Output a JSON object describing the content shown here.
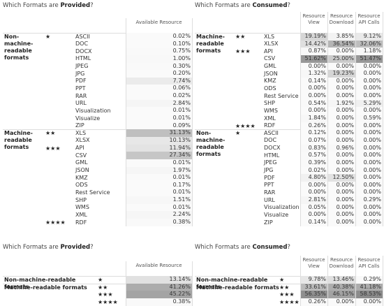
{
  "top_provided": {
    "title": {
      "prefix": "Which Formats are ",
      "emphasis": "Provided",
      "suffix": "?"
    },
    "headers": [
      "Available Resource"
    ],
    "groups": [
      {
        "label": "Non-machine-readable formats",
        "tiers": [
          {
            "stars": "★",
            "rows": [
              {
                "format": "ASCII",
                "values": [
                  "0.02%"
                ]
              },
              {
                "format": "DOC",
                "values": [
                  "0.10%"
                ]
              },
              {
                "format": "DOCX",
                "values": [
                  "0.75%"
                ]
              },
              {
                "format": "HTML",
                "values": [
                  "1.00%"
                ]
              },
              {
                "format": "JPEG",
                "values": [
                  "0.30%"
                ]
              },
              {
                "format": "JPG",
                "values": [
                  "0.20%"
                ]
              },
              {
                "format": "PDF",
                "values": [
                  "7.74%"
                ]
              },
              {
                "format": "PPT",
                "values": [
                  "0.06%"
                ]
              },
              {
                "format": "RAR",
                "values": [
                  "0.02%"
                ]
              },
              {
                "format": "URL",
                "values": [
                  "2.84%"
                ]
              },
              {
                "format": "Visualization",
                "values": [
                  "0.01%"
                ]
              },
              {
                "format": "Visualize",
                "values": [
                  "0.01%"
                ]
              },
              {
                "format": "ZIP",
                "values": [
                  "0.09%"
                ]
              }
            ]
          }
        ]
      },
      {
        "label": "Machine-readable formats",
        "tiers": [
          {
            "stars": "★★",
            "rows": [
              {
                "format": "XLS",
                "values": [
                  "31.13%"
                ]
              },
              {
                "format": "XLSX",
                "values": [
                  "10.13%"
                ]
              }
            ]
          },
          {
            "stars": "★★★",
            "rows": [
              {
                "format": "API",
                "values": [
                  "11.94%"
                ]
              },
              {
                "format": "CSV",
                "values": [
                  "27.34%"
                ]
              },
              {
                "format": "GML",
                "values": [
                  "0.01%"
                ]
              },
              {
                "format": "JSON",
                "values": [
                  "1.97%"
                ]
              },
              {
                "format": "KMZ",
                "values": [
                  "0.01%"
                ]
              },
              {
                "format": "ODS",
                "values": [
                  "0.17%"
                ]
              },
              {
                "format": "Rest Service",
                "values": [
                  "0.01%"
                ]
              },
              {
                "format": "SHP",
                "values": [
                  "1.51%"
                ]
              },
              {
                "format": "WMS",
                "values": [
                  "0.01%"
                ]
              },
              {
                "format": "XML",
                "values": [
                  "2.24%"
                ]
              }
            ]
          },
          {
            "stars": "★★★★",
            "rows": [
              {
                "format": "RDF",
                "values": [
                  "0.38%"
                ]
              }
            ]
          }
        ]
      }
    ]
  },
  "top_consumed": {
    "title": {
      "prefix": "Which Formats are ",
      "emphasis": "Consumed",
      "suffix": "?"
    },
    "headers": [
      "Resource View",
      "Resource Download",
      "Resource API Calls"
    ],
    "groups": [
      {
        "label": "Machine-readable formats",
        "tiers": [
          {
            "stars": "★★",
            "rows": [
              {
                "format": "XLS",
                "values": [
                  "19.19%",
                  "3.85%",
                  "9.12%"
                ]
              },
              {
                "format": "XLSX",
                "values": [
                  "14.42%",
                  "36.54%",
                  "32.06%"
                ]
              }
            ]
          },
          {
            "stars": "★★★",
            "rows": [
              {
                "format": "API",
                "values": [
                  "0.87%",
                  "0.00%",
                  "1.18%"
                ]
              },
              {
                "format": "CSV",
                "values": [
                  "51.62%",
                  "25.00%",
                  "51.47%"
                ]
              },
              {
                "format": "GML",
                "values": [
                  "0.00%",
                  "0.00%",
                  "0.00%"
                ]
              },
              {
                "format": "JSON",
                "values": [
                  "1.32%",
                  "19.23%",
                  "0.00%"
                ]
              },
              {
                "format": "KMZ",
                "values": [
                  "0.14%",
                  "0.00%",
                  "0.00%"
                ]
              },
              {
                "format": "ODS",
                "values": [
                  "0.00%",
                  "0.00%",
                  "0.00%"
                ]
              },
              {
                "format": "Rest Service",
                "values": [
                  "0.00%",
                  "0.00%",
                  "0.00%"
                ]
              },
              {
                "format": "SHP",
                "values": [
                  "0.54%",
                  "1.92%",
                  "5.29%"
                ]
              },
              {
                "format": "WMS",
                "values": [
                  "0.00%",
                  "0.00%",
                  "0.00%"
                ]
              },
              {
                "format": "XML",
                "values": [
                  "1.84%",
                  "0.00%",
                  "0.59%"
                ]
              }
            ]
          },
          {
            "stars": "★★★★",
            "rows": [
              {
                "format": "RDF",
                "values": [
                  "0.26%",
                  "0.00%",
                  "0.00%"
                ]
              }
            ]
          }
        ]
      },
      {
        "label": "Non-machine-readable formats",
        "tiers": [
          {
            "stars": "★",
            "rows": [
              {
                "format": "ASCII",
                "values": [
                  "0.12%",
                  "0.00%",
                  "0.00%"
                ]
              },
              {
                "format": "DOC",
                "values": [
                  "0.07%",
                  "0.00%",
                  "0.00%"
                ]
              },
              {
                "format": "DOCX",
                "values": [
                  "0.83%",
                  "0.96%",
                  "0.00%"
                ]
              },
              {
                "format": "HTML",
                "values": [
                  "0.57%",
                  "0.00%",
                  "0.00%"
                ]
              },
              {
                "format": "JPEG",
                "values": [
                  "0.39%",
                  "0.00%",
                  "0.00%"
                ]
              },
              {
                "format": "JPG",
                "values": [
                  "0.02%",
                  "0.00%",
                  "0.00%"
                ]
              },
              {
                "format": "PDF",
                "values": [
                  "4.80%",
                  "12.50%",
                  "0.00%"
                ]
              },
              {
                "format": "PPT",
                "values": [
                  "0.00%",
                  "0.00%",
                  "0.00%"
                ]
              },
              {
                "format": "RAR",
                "values": [
                  "0.00%",
                  "0.00%",
                  "0.00%"
                ]
              },
              {
                "format": "URL",
                "values": [
                  "2.81%",
                  "0.00%",
                  "0.29%"
                ]
              },
              {
                "format": "Visualization",
                "values": [
                  "0.05%",
                  "0.00%",
                  "0.00%"
                ]
              },
              {
                "format": "Visualize",
                "values": [
                  "0.00%",
                  "0.00%",
                  "0.00%"
                ]
              },
              {
                "format": "ZIP",
                "values": [
                  "0.14%",
                  "0.00%",
                  "0.00%"
                ]
              }
            ]
          }
        ]
      }
    ]
  },
  "bottom_provided": {
    "title": {
      "prefix": "Which Formats are ",
      "emphasis": "Provided",
      "suffix": "?"
    },
    "headers": [
      "Available Resource"
    ],
    "groups": [
      {
        "label": "Non-machine-readable formats",
        "tiers": [
          {
            "stars": "★",
            "values": [
              "13.14%"
            ]
          }
        ]
      },
      {
        "label": "Machine-readable formats",
        "tiers": [
          {
            "stars": "★★",
            "values": [
              "41.26%"
            ]
          },
          {
            "stars": "★★★",
            "values": [
              "45.22%"
            ]
          },
          {
            "stars": "★★★★",
            "values": [
              "0.38%"
            ]
          }
        ]
      }
    ]
  },
  "bottom_consumed": {
    "title": {
      "prefix": "Which Formats are ",
      "emphasis": "Consumed",
      "suffix": "?"
    },
    "headers": [
      "Resource View",
      "Resource Download",
      "Resource API Calls"
    ],
    "groups": [
      {
        "label": "Non-machine-readable formats",
        "tiers": [
          {
            "stars": "★",
            "values": [
              "9.78%",
              "13.46%",
              "0.29%"
            ]
          }
        ]
      },
      {
        "label": "Machine-readable formats",
        "tiers": [
          {
            "stars": "★★",
            "values": [
              "33.61%",
              "40.38%",
              "41.18%"
            ]
          },
          {
            "stars": "★★★",
            "values": [
              "56.35%",
              "46.15%",
              "58.53%"
            ]
          },
          {
            "stars": "★★★★",
            "values": [
              "0.26%",
              "0.00%",
              "0.00%"
            ]
          }
        ]
      }
    ]
  }
}
